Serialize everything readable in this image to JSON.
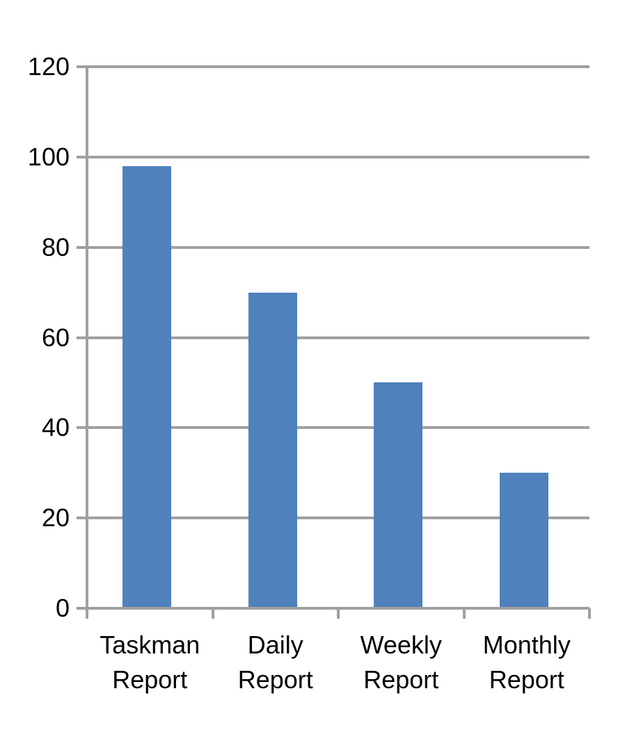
{
  "chart_data": {
    "type": "bar",
    "title": "",
    "categories": [
      "Taskman Report",
      "Daily Report",
      "Weekly Report",
      "Monthly Report"
    ],
    "values": [
      98,
      70,
      50,
      30
    ],
    "xlabel": "",
    "ylabel": "",
    "ylim": [
      0,
      120
    ],
    "yticks": [
      0,
      20,
      40,
      60,
      80,
      100,
      120
    ],
    "grid": true,
    "legend_position": "none",
    "colors": {
      "bar": "#4F81BD",
      "gridline": "#A0A0A0",
      "axis": "#A0A0A0",
      "tick_label": "#000000",
      "background": "#FFFFFF"
    }
  }
}
